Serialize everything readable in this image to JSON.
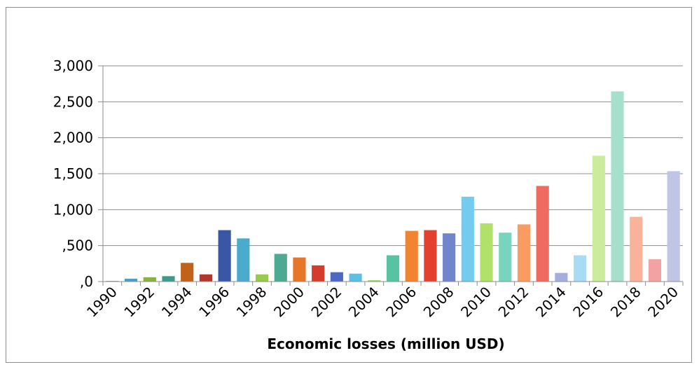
{
  "chart_data": {
    "type": "bar",
    "title": "",
    "xlabel": "Economic losses (million USD)",
    "ylabel": "",
    "ylim": [
      0,
      3000
    ],
    "yticks": [
      0,
      500,
      1000,
      1500,
      2000,
      2500,
      3000
    ],
    "ytick_labels": [
      ",0",
      ",500",
      "1,000",
      "1,500",
      "2,000",
      "2,500",
      "3,000"
    ],
    "grid": true,
    "legend": "none",
    "categories": [
      "1990",
      "1991",
      "1992",
      "1993",
      "1994",
      "1995",
      "1996",
      "1997",
      "1998",
      "1999",
      "2000",
      "2001",
      "2002",
      "2003",
      "2004",
      "2005",
      "2006",
      "2007",
      "2008",
      "2009",
      "2010",
      "2011",
      "2012",
      "2013",
      "2014",
      "2015",
      "2016",
      "2017",
      "2018",
      "2019",
      "2020"
    ],
    "xtick_labels": [
      "1990",
      "1992",
      "1994",
      "1996",
      "1998",
      "2000",
      "2002",
      "2004",
      "2006",
      "2008",
      "2010",
      "2012",
      "2014",
      "2016",
      "2018",
      "2020"
    ],
    "values": [
      10,
      40,
      60,
      75,
      260,
      100,
      715,
      600,
      100,
      385,
      335,
      225,
      130,
      110,
      20,
      365,
      705,
      715,
      670,
      1180,
      810,
      680,
      795,
      1330,
      120,
      365,
      1750,
      2645,
      900,
      310,
      1535
    ],
    "colors": [
      "#8ea3d2",
      "#4b9fc4",
      "#8bb13f",
      "#3e9a8c",
      "#c0621a",
      "#b3362a",
      "#3a57a5",
      "#4aabcd",
      "#9bc94a",
      "#4ea993",
      "#e5762a",
      "#d63c2e",
      "#4b68c4",
      "#5bc1e4",
      "#a7d872",
      "#58c3a1",
      "#f28330",
      "#e3402f",
      "#7185cc",
      "#73cbef",
      "#b1e06b",
      "#78d4bd",
      "#fa9b62",
      "#ef6b61",
      "#a5aee0",
      "#a8dcf5",
      "#cdeb9c",
      "#a6dfcb",
      "#f8b39a",
      "#f3a2a2",
      "#c0c5e5"
    ],
    "grid_color": "#8c8c8c",
    "axis_color": "#8c8c8c"
  }
}
